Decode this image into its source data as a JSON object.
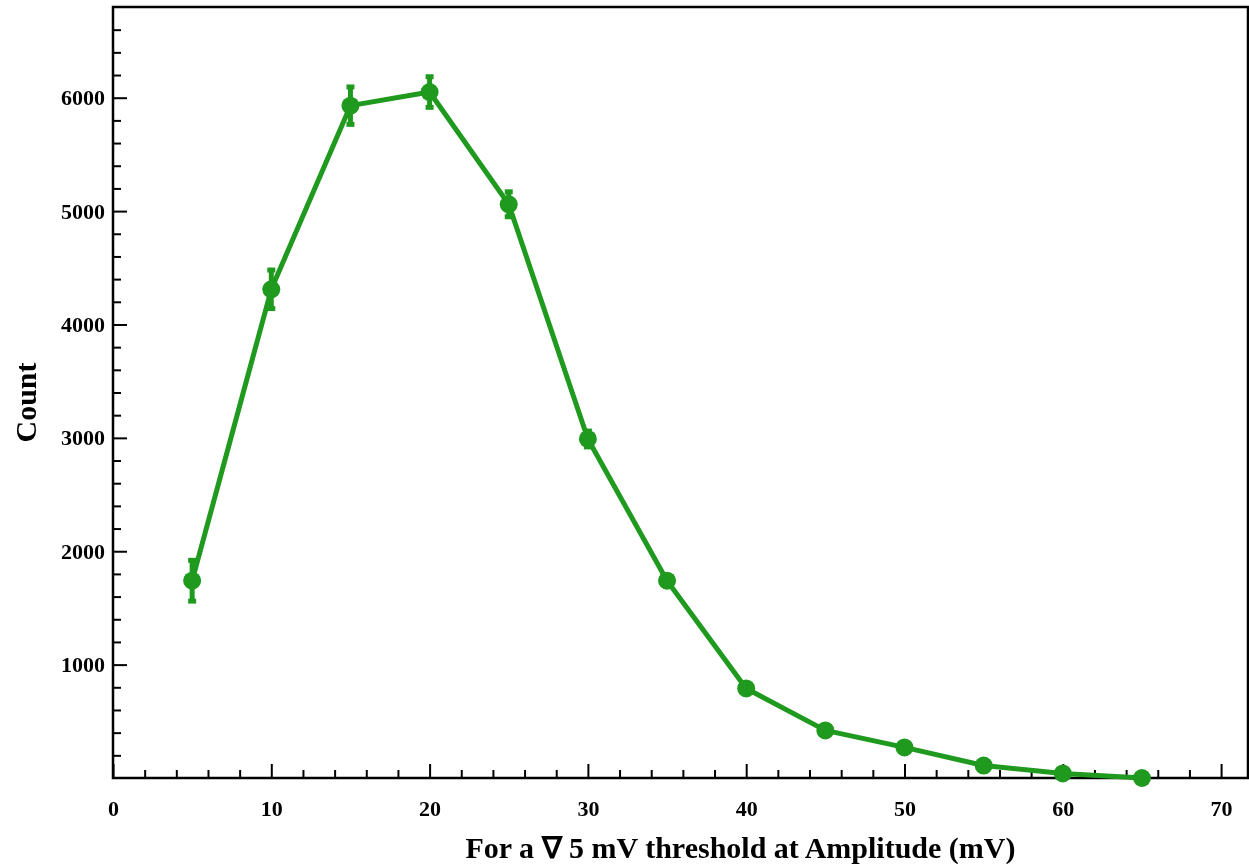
{
  "chart_data": {
    "type": "line",
    "xlabel": "For a ∇ 5 mV threshold at Amplitude (mV)",
    "ylabel": "Count",
    "x": [
      5,
      10,
      15,
      20,
      25,
      30,
      35,
      40,
      45,
      50,
      55,
      60,
      65
    ],
    "series": [
      {
        "color": "#1f9a1f",
        "values": [
          1740,
          4310,
          5930,
          6050,
          5060,
          2990,
          1740,
          790,
          420,
          270,
          110,
          40,
          0
        ],
        "errors": [
          180,
          170,
          165,
          135,
          110,
          70,
          null,
          null,
          null,
          null,
          null,
          null,
          null
        ]
      }
    ],
    "xlim": [
      0,
      71.7
    ],
    "ylim": [
      0,
      6800
    ],
    "xticks": [
      0,
      {
        "value": 2,
        "label": null
      },
      {
        "value": 4,
        "label": null
      },
      {
        "value": 6,
        "label": null
      },
      {
        "value": 8,
        "label": null
      },
      10,
      {
        "value": 12,
        "label": null
      },
      {
        "value": 14,
        "label": null
      },
      {
        "value": 16,
        "label": null
      },
      {
        "value": 18,
        "label": null
      },
      20,
      {
        "value": 22,
        "label": null
      },
      {
        "value": 24,
        "label": null
      },
      {
        "value": 26,
        "label": null
      },
      {
        "value": 28,
        "label": null
      },
      30,
      {
        "value": 32,
        "label": null
      },
      {
        "value": 34,
        "label": null
      },
      {
        "value": 36,
        "label": null
      },
      {
        "value": 38,
        "label": null
      },
      40,
      {
        "value": 42,
        "label": null
      },
      {
        "value": 44,
        "label": null
      },
      {
        "value": 46,
        "label": null
      },
      {
        "value": 48,
        "label": null
      },
      50,
      {
        "value": 52,
        "label": null
      },
      {
        "value": 54,
        "label": null
      },
      {
        "value": 56,
        "label": null
      },
      {
        "value": 58,
        "label": null
      },
      60,
      {
        "value": 62,
        "label": null
      },
      {
        "value": 64,
        "label": null
      },
      {
        "value": 66,
        "label": null
      },
      {
        "value": 68,
        "label": null
      },
      70
    ],
    "yticks": [
      {
        "value": 200,
        "label": null
      },
      {
        "value": 400,
        "label": null
      },
      {
        "value": 600,
        "label": null
      },
      {
        "value": 800,
        "label": null
      },
      1000,
      {
        "value": 1200,
        "label": null
      },
      {
        "value": 1400,
        "label": null
      },
      {
        "value": 1600,
        "label": null
      },
      {
        "value": 1800,
        "label": null
      },
      2000,
      {
        "value": 2200,
        "label": null
      },
      {
        "value": 2400,
        "label": null
      },
      {
        "value": 2600,
        "label": null
      },
      {
        "value": 2800,
        "label": null
      },
      3000,
      {
        "value": 3200,
        "label": null
      },
      {
        "value": 3400,
        "label": null
      },
      {
        "value": 3600,
        "label": null
      },
      {
        "value": 3800,
        "label": null
      },
      4000,
      {
        "value": 4200,
        "label": null
      },
      {
        "value": 4400,
        "label": null
      },
      {
        "value": 4600,
        "label": null
      },
      {
        "value": 4800,
        "label": null
      },
      5000,
      {
        "value": 5200,
        "label": null
      },
      {
        "value": 5400,
        "label": null
      },
      {
        "value": 5600,
        "label": null
      },
      {
        "value": 5800,
        "label": null
      },
      6000,
      {
        "value": 6200,
        "label": null
      },
      {
        "value": 6400,
        "label": null
      },
      {
        "value": 6600,
        "label": null
      }
    ],
    "marker": "circle",
    "line_style": "solid",
    "grid": false
  }
}
